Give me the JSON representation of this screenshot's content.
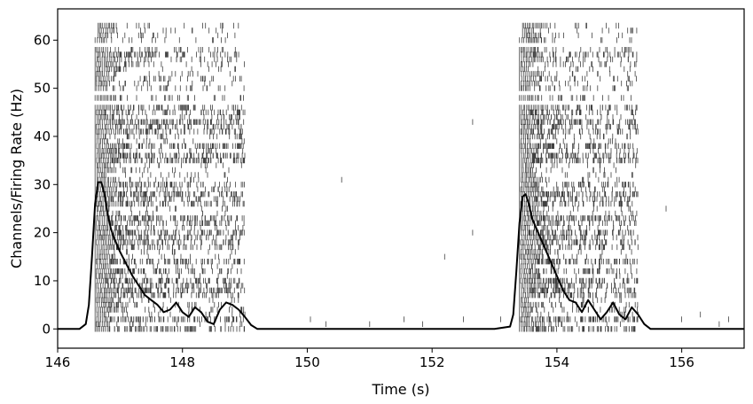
{
  "chart_data": {
    "type": "line",
    "subtype": "spike raster with firing-rate curve",
    "title": "",
    "xlabel": "Time (s)",
    "ylabel": "Channels/Firing Rate (Hz)",
    "xlim": [
      146,
      157
    ],
    "ylim": [
      -4,
      66.5
    ],
    "xticks": [
      146,
      148,
      150,
      152,
      154,
      156
    ],
    "yticks": [
      0,
      10,
      20,
      30,
      40,
      50,
      60
    ],
    "grid": false,
    "legend": "none",
    "colors": {
      "line": "#000000",
      "raster": "#000000",
      "background": "#ffffff"
    },
    "raster": {
      "channels": 64,
      "bursts": [
        {
          "start": 146.6,
          "end": 149.0
        },
        {
          "start": 153.4,
          "end": 155.3
        }
      ],
      "sparse_spikes": [
        {
          "channel": 43,
          "time": 152.65
        },
        {
          "channel": 31,
          "time": 150.55
        },
        {
          "channel": 25,
          "time": 155.75
        },
        {
          "channel": 20,
          "time": 152.65
        },
        {
          "channel": 15,
          "time": 152.2
        },
        {
          "channel": 3,
          "time": 149.0
        },
        {
          "channel": 3,
          "time": 155.3
        },
        {
          "channel": 3,
          "time": 156.3
        },
        {
          "channel": 2,
          "time": 150.05
        },
        {
          "channel": 2,
          "time": 151.55
        },
        {
          "channel": 2,
          "time": 152.5
        },
        {
          "channel": 2,
          "time": 153.1
        },
        {
          "channel": 2,
          "time": 156.0
        },
        {
          "channel": 2,
          "time": 156.75
        },
        {
          "channel": 1,
          "time": 150.3
        },
        {
          "channel": 1,
          "time": 151.0
        },
        {
          "channel": 1,
          "time": 151.85
        },
        {
          "channel": 1,
          "time": 156.6
        }
      ]
    },
    "series": [
      {
        "type": "line",
        "x": [
          146.0,
          146.35,
          146.45,
          146.5,
          146.55,
          146.6,
          146.65,
          146.7,
          146.75,
          146.8,
          146.85,
          146.9,
          147.0,
          147.1,
          147.2,
          147.3,
          147.4,
          147.5,
          147.6,
          147.7,
          147.8,
          147.9,
          148.0,
          148.1,
          148.2,
          148.3,
          148.4,
          148.5,
          148.6,
          148.7,
          148.8,
          148.9,
          149.0,
          149.1,
          149.2,
          150.0,
          153.0,
          153.25,
          153.3,
          153.35,
          153.4,
          153.45,
          153.5,
          153.55,
          153.6,
          153.7,
          153.8,
          153.9,
          154.0,
          154.1,
          154.2,
          154.3,
          154.4,
          154.5,
          154.6,
          154.7,
          154.8,
          154.9,
          155.0,
          155.1,
          155.2,
          155.3,
          155.4,
          155.5,
          156.0,
          157.0
        ],
        "y": [
          0,
          0,
          1,
          5,
          15,
          26,
          30.5,
          30.5,
          28,
          24,
          21,
          19,
          16,
          13.5,
          11,
          9,
          7,
          6,
          5,
          3.5,
          4,
          5.5,
          3.5,
          2.5,
          4.5,
          3.5,
          1.5,
          1,
          4,
          5.5,
          5,
          4,
          2.5,
          0.8,
          0,
          0,
          0,
          0.5,
          3,
          12,
          22,
          27.5,
          28,
          26,
          23,
          20,
          17,
          14,
          11,
          8,
          6,
          5.5,
          3.5,
          6,
          4,
          2,
          3.5,
          5.5,
          3,
          2,
          4.5,
          3,
          1,
          0,
          0,
          0
        ]
      }
    ]
  }
}
